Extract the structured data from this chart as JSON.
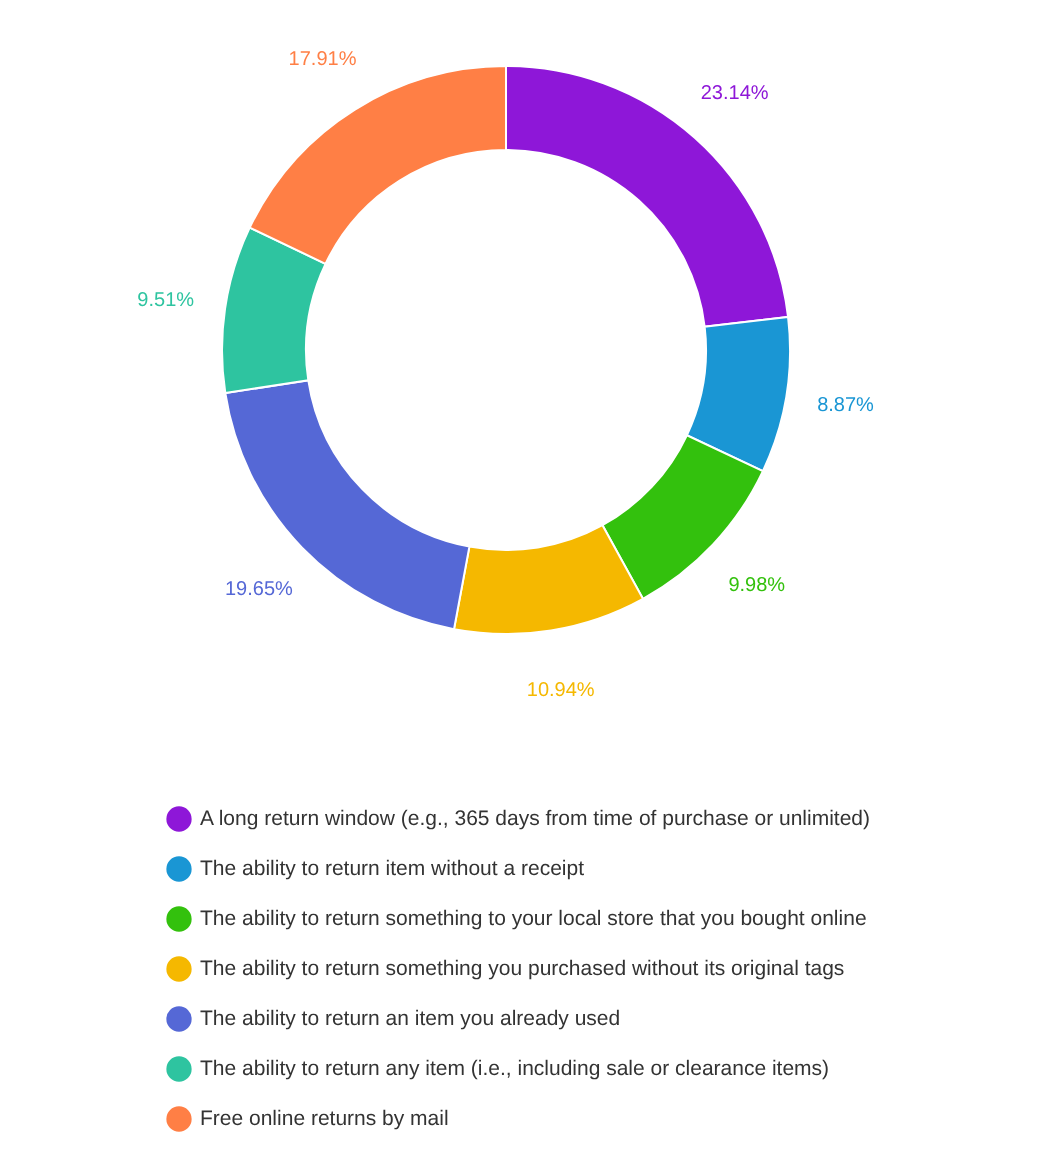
{
  "chart_data": {
    "type": "donut",
    "categories": [
      "A long return window (e.g., 365 days from time of purchase or unlimited)",
      "The ability to return item without a receipt",
      "The ability to return something to your local store that you bought online",
      "The ability to return something you purchased without its original tags",
      "The ability to return an item you already used",
      "The ability to return any item (i.e., including sale or clearance items)",
      "Free online returns by mail"
    ],
    "values": [
      23.14,
      8.87,
      9.98,
      10.94,
      19.65,
      9.51,
      17.91
    ],
    "colors": [
      "#8e17d8",
      "#1a96d4",
      "#33c10d",
      "#f5b800",
      "#5568d6",
      "#2ec4a0",
      "#ff7f45"
    ],
    "value_labels": [
      "23.14%",
      "8.87%",
      "9.98%",
      "10.94%",
      "19.65%",
      "9.51%",
      "17.91%"
    ],
    "legend": "bottom"
  }
}
